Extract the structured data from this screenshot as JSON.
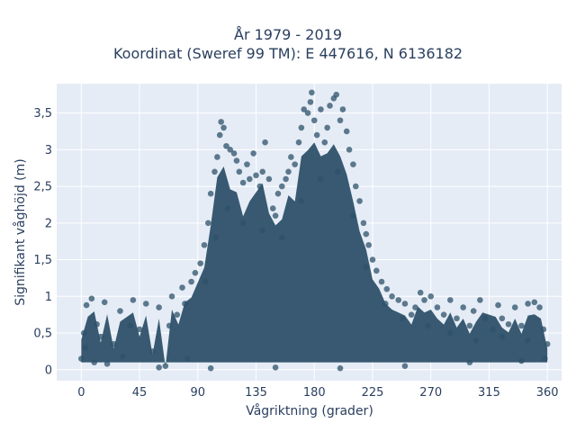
{
  "chart_data": {
    "type": "scatter",
    "title": "År 1979 - 2019",
    "subtitle": "Koordinat (Sweref 99 TM): E 447616, N 6136182",
    "xlabel": "Vågriktning (grader)",
    "ylabel": "Signifikant våghöjd (m)",
    "xlim": [
      -19,
      371
    ],
    "ylim": [
      -0.15,
      3.9
    ],
    "x_ticks": [
      0,
      45,
      90,
      135,
      180,
      225,
      270,
      315,
      360
    ],
    "x_tick_labels": [
      "0",
      "45",
      "90",
      "135",
      "180",
      "225",
      "270",
      "315",
      "360"
    ],
    "y_ticks": [
      0,
      0.5,
      1,
      1.5,
      2,
      2.5,
      3,
      3.5
    ],
    "y_tick_labels": [
      "0",
      "0,5",
      "1",
      "1,5",
      "2",
      "2,5",
      "3",
      "3,5"
    ],
    "grid": true,
    "marker_color": "#2e5169",
    "plot_bg": "#e5ecf6",
    "series": [
      {
        "points": [
          [
            0,
            0.15
          ],
          [
            2,
            0.5
          ],
          [
            4,
            0.88
          ],
          [
            8,
            0.97
          ],
          [
            12,
            0.62
          ],
          [
            18,
            0.92
          ],
          [
            25,
            0.35
          ],
          [
            30,
            0.8
          ],
          [
            32,
            0.18
          ],
          [
            40,
            0.95
          ],
          [
            45,
            0.55
          ],
          [
            50,
            0.9
          ],
          [
            55,
            0.25
          ],
          [
            60,
            0.85
          ],
          [
            65,
            0.05
          ],
          [
            70,
            1.0
          ],
          [
            74,
            0.75
          ],
          [
            78,
            1.12
          ],
          [
            82,
            0.15
          ],
          [
            85,
            1.2
          ],
          [
            88,
            1.32
          ],
          [
            92,
            1.45
          ],
          [
            95,
            1.7
          ],
          [
            98,
            2.0
          ],
          [
            100,
            2.4
          ],
          [
            103,
            2.7
          ],
          [
            105,
            2.9
          ],
          [
            107,
            3.2
          ],
          [
            108,
            3.38
          ],
          [
            110,
            3.3
          ],
          [
            112,
            3.05
          ],
          [
            115,
            3.0
          ],
          [
            118,
            2.95
          ],
          [
            120,
            2.85
          ],
          [
            122,
            2.7
          ],
          [
            125,
            2.55
          ],
          [
            128,
            2.8
          ],
          [
            130,
            2.6
          ],
          [
            133,
            2.95
          ],
          [
            135,
            2.65
          ],
          [
            138,
            2.5
          ],
          [
            140,
            2.7
          ],
          [
            142,
            3.1
          ],
          [
            145,
            2.6
          ],
          [
            148,
            2.2
          ],
          [
            150,
            2.1
          ],
          [
            152,
            2.4
          ],
          [
            155,
            2.5
          ],
          [
            158,
            2.6
          ],
          [
            160,
            2.7
          ],
          [
            162,
            2.9
          ],
          [
            165,
            2.8
          ],
          [
            168,
            3.1
          ],
          [
            170,
            3.3
          ],
          [
            172,
            3.55
          ],
          [
            175,
            3.5
          ],
          [
            177,
            3.65
          ],
          [
            178,
            3.78
          ],
          [
            180,
            3.4
          ],
          [
            182,
            3.2
          ],
          [
            185,
            3.55
          ],
          [
            188,
            3.1
          ],
          [
            190,
            3.3
          ],
          [
            192,
            3.6
          ],
          [
            195,
            3.7
          ],
          [
            197,
            3.75
          ],
          [
            200,
            3.4
          ],
          [
            202,
            3.55
          ],
          [
            205,
            3.25
          ],
          [
            207,
            3.0
          ],
          [
            210,
            2.8
          ],
          [
            212,
            2.5
          ],
          [
            215,
            2.3
          ],
          [
            218,
            2.0
          ],
          [
            220,
            1.85
          ],
          [
            222,
            1.7
          ],
          [
            225,
            1.5
          ],
          [
            228,
            1.35
          ],
          [
            232,
            1.2
          ],
          [
            236,
            1.1
          ],
          [
            240,
            1.0
          ],
          [
            245,
            0.95
          ],
          [
            250,
            0.9
          ],
          [
            255,
            0.75
          ],
          [
            258,
            0.85
          ],
          [
            262,
            1.05
          ],
          [
            265,
            0.95
          ],
          [
            270,
            1.0
          ],
          [
            275,
            0.85
          ],
          [
            280,
            0.75
          ],
          [
            285,
            0.95
          ],
          [
            290,
            0.7
          ],
          [
            295,
            0.85
          ],
          [
            300,
            0.6
          ],
          [
            303,
            0.8
          ],
          [
            308,
            0.95
          ],
          [
            312,
            0.7
          ],
          [
            318,
            0.55
          ],
          [
            322,
            0.88
          ],
          [
            325,
            0.7
          ],
          [
            330,
            0.62
          ],
          [
            335,
            0.85
          ],
          [
            340,
            0.6
          ],
          [
            345,
            0.9
          ],
          [
            350,
            0.92
          ],
          [
            354,
            0.85
          ],
          [
            357,
            0.55
          ],
          [
            360,
            0.35
          ],
          [
            10,
            0.1
          ],
          [
            20,
            0.08
          ],
          [
            60,
            0.03
          ],
          [
            100,
            0.02
          ],
          [
            150,
            0.03
          ],
          [
            200,
            0.02
          ],
          [
            250,
            0.05
          ],
          [
            300,
            0.1
          ],
          [
            340,
            0.12
          ],
          [
            358,
            0.15
          ],
          [
            3,
            0.3
          ],
          [
            15,
            0.45
          ],
          [
            38,
            0.6
          ],
          [
            68,
            0.6
          ],
          [
            80,
            0.9
          ],
          [
            96,
            1.2
          ],
          [
            104,
            1.8
          ],
          [
            113,
            2.2
          ],
          [
            125,
            2.0
          ],
          [
            140,
            1.9
          ],
          [
            155,
            1.8
          ],
          [
            170,
            2.3
          ],
          [
            185,
            2.6
          ],
          [
            198,
            2.7
          ],
          [
            210,
            2.1
          ],
          [
            220,
            1.4
          ],
          [
            235,
            0.9
          ],
          [
            248,
            0.7
          ],
          [
            268,
            0.6
          ],
          [
            285,
            0.5
          ],
          [
            305,
            0.4
          ],
          [
            325,
            0.45
          ],
          [
            345,
            0.4
          ]
        ]
      }
    ]
  }
}
